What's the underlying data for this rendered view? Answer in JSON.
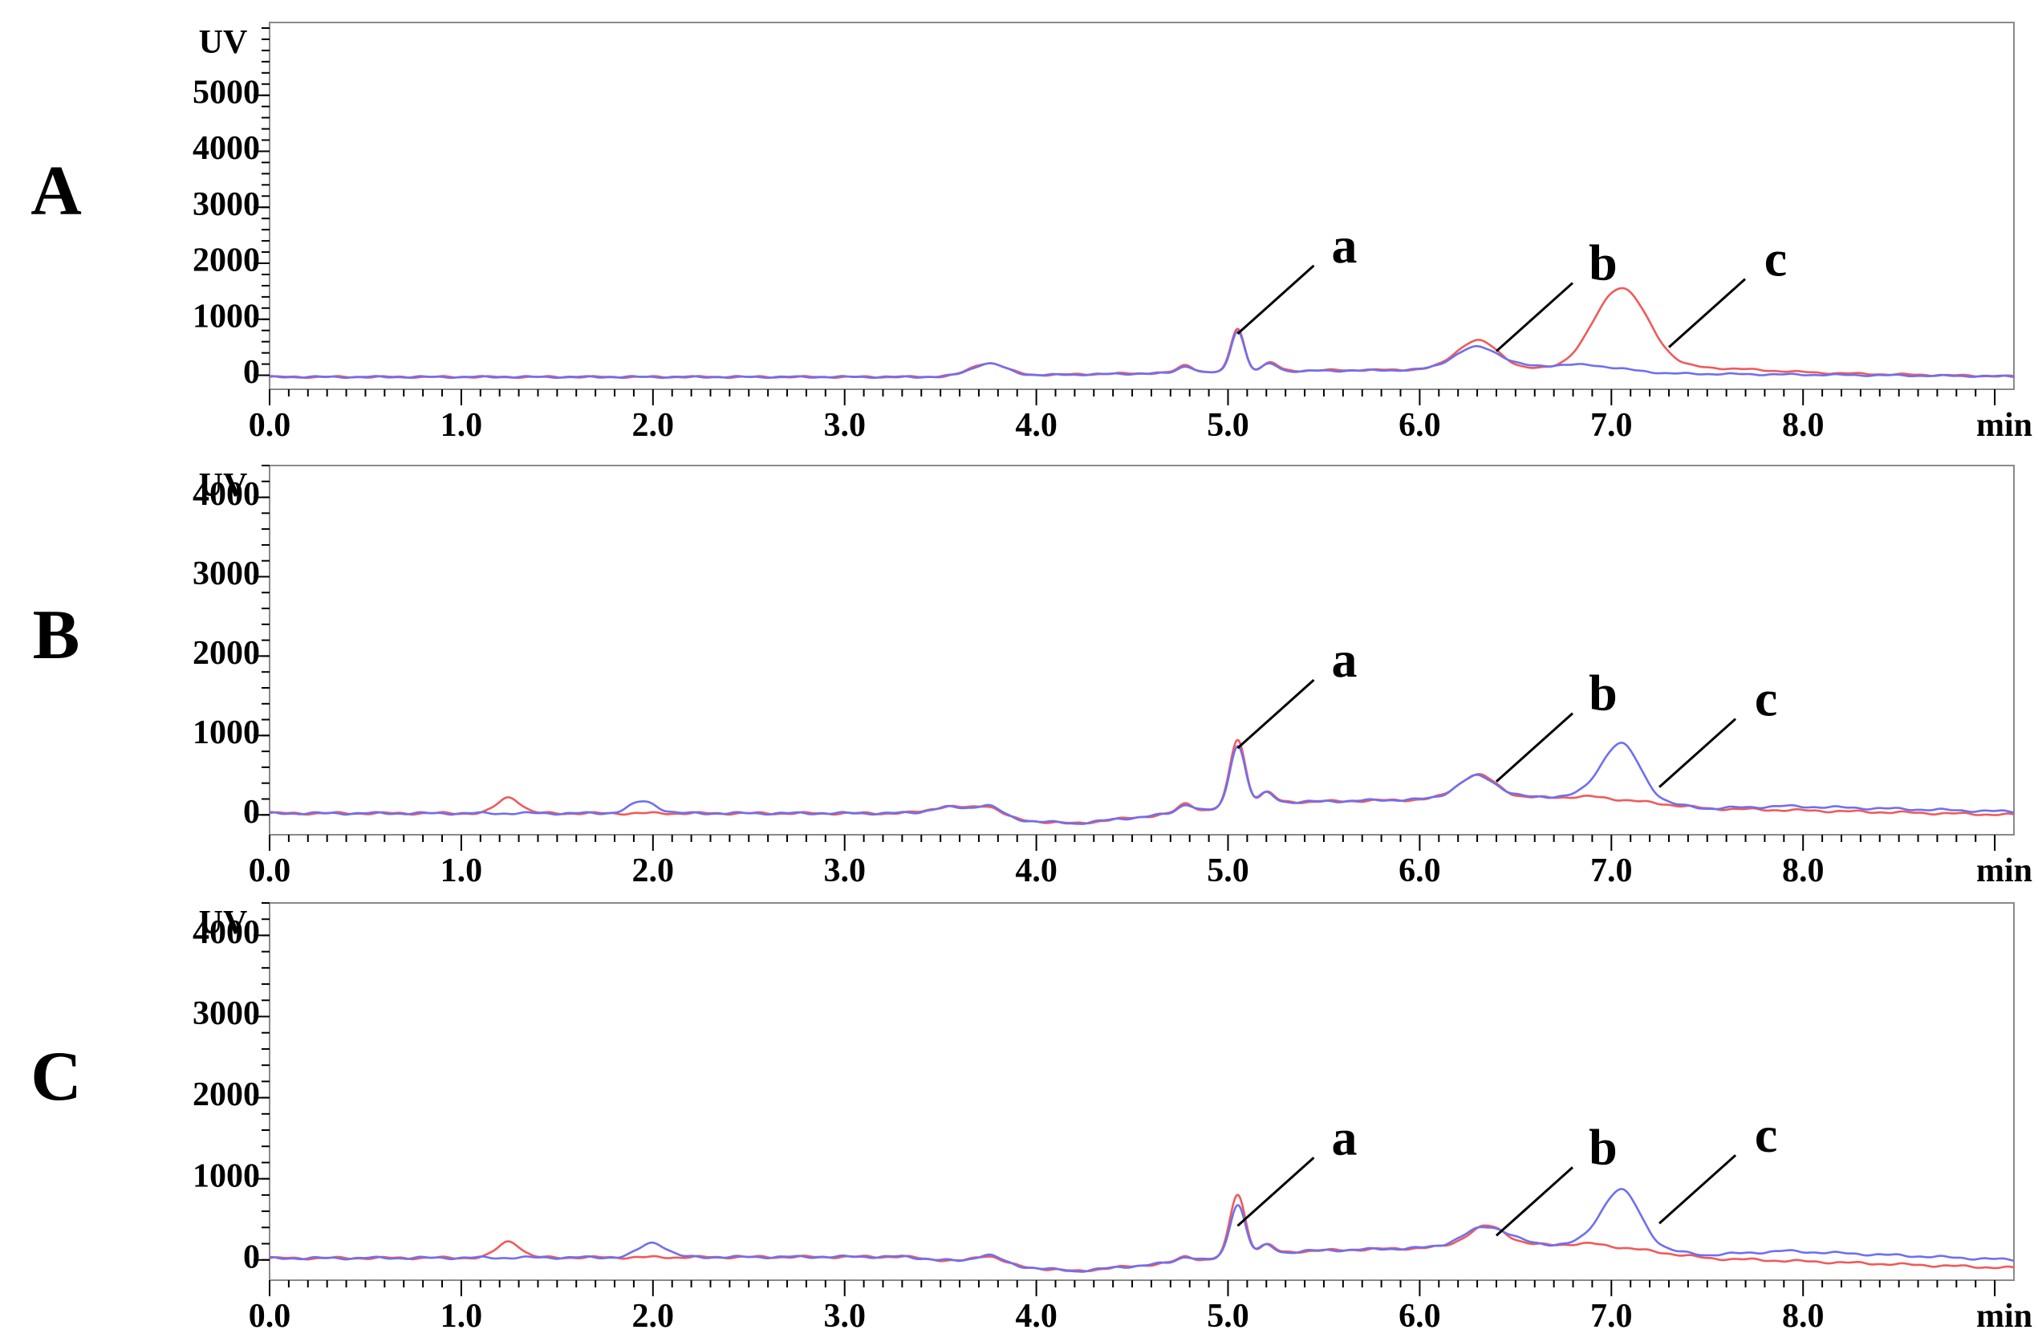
{
  "chart_data": [
    {
      "type": "line",
      "panel_label": "A",
      "ylabel": "UV",
      "xlabel": "min",
      "xlim": [
        0,
        9.1
      ],
      "ylim": [
        -250,
        6300
      ],
      "y_ticks": [
        0,
        1000,
        2000,
        3000,
        4000,
        5000
      ],
      "x_ticks": [
        "0.0",
        "1.0",
        "2.0",
        "3.0",
        "4.0",
        "5.0",
        "6.0",
        "7.0",
        "8.0"
      ],
      "peak_labels": [
        {
          "label": "a",
          "x": 5.05,
          "y": 740
        },
        {
          "label": "b",
          "x": 6.4,
          "y": 430
        },
        {
          "label": "c",
          "x": 7.3,
          "y": 500
        }
      ],
      "series": [
        {
          "color": "#f05a5a",
          "peaks": [
            [
              3.75,
              230,
              0.09
            ],
            [
              4.78,
              130,
              0.04
            ],
            [
              5.05,
              770,
              0.035
            ],
            [
              5.22,
              150,
              0.04
            ],
            [
              6.3,
              520,
              0.11
            ],
            [
              7.05,
              1450,
              0.14
            ],
            [
              7.5,
              60,
              0.3
            ]
          ],
          "baseline": [
            [
              0,
              -30
            ],
            [
              3.4,
              -30
            ],
            [
              5.5,
              90
            ],
            [
              6.8,
              110
            ],
            [
              9.1,
              -20
            ]
          ]
        },
        {
          "color": "#6f6ff0",
          "peaks": [
            [
              3.75,
              220,
              0.09
            ],
            [
              4.78,
              120,
              0.04
            ],
            [
              5.05,
              740,
              0.035
            ],
            [
              5.22,
              140,
              0.04
            ],
            [
              6.3,
              400,
              0.12
            ],
            [
              6.8,
              70,
              0.2
            ]
          ],
          "baseline": [
            [
              0,
              -30
            ],
            [
              3.4,
              -30
            ],
            [
              5.5,
              80
            ],
            [
              6.9,
              120
            ],
            [
              7.3,
              30
            ],
            [
              9.1,
              -20
            ]
          ]
        }
      ]
    },
    {
      "type": "line",
      "panel_label": "B",
      "ylabel": "UV",
      "xlabel": "min",
      "xlim": [
        0,
        9.1
      ],
      "ylim": [
        -250,
        4400
      ],
      "y_ticks": [
        0,
        1000,
        2000,
        3000,
        4000
      ],
      "x_ticks": [
        "0.0",
        "1.0",
        "2.0",
        "3.0",
        "4.0",
        "5.0",
        "6.0",
        "7.0",
        "8.0"
      ],
      "peak_labels": [
        {
          "label": "a",
          "x": 5.05,
          "y": 840
        },
        {
          "label": "b",
          "x": 6.4,
          "y": 420
        },
        {
          "label": "c",
          "x": 7.25,
          "y": 350
        }
      ],
      "series": [
        {
          "color": "#f05a5a",
          "peaks": [
            [
              1.25,
              200,
              0.06
            ],
            [
              3.55,
              120,
              0.1
            ],
            [
              3.75,
              140,
              0.07
            ],
            [
              4.78,
              110,
              0.04
            ],
            [
              5.05,
              850,
              0.04
            ],
            [
              5.2,
              150,
              0.04
            ],
            [
              6.3,
              300,
              0.1
            ]
          ],
          "baseline": [
            [
              0,
              20
            ],
            [
              3.3,
              20
            ],
            [
              4.2,
              -110
            ],
            [
              5.3,
              160
            ],
            [
              6.9,
              230
            ],
            [
              7.5,
              80
            ],
            [
              9.1,
              0
            ]
          ]
        },
        {
          "color": "#6f6ff0",
          "peaks": [
            [
              1.95,
              150,
              0.07
            ],
            [
              3.55,
              110,
              0.1
            ],
            [
              3.75,
              150,
              0.07
            ],
            [
              4.78,
              100,
              0.04
            ],
            [
              5.05,
              780,
              0.04
            ],
            [
              5.2,
              140,
              0.04
            ],
            [
              6.3,
              280,
              0.1
            ],
            [
              7.05,
              700,
              0.1
            ]
          ],
          "baseline": [
            [
              0,
              20
            ],
            [
              3.3,
              20
            ],
            [
              4.2,
              -110
            ],
            [
              5.3,
              160
            ],
            [
              6.9,
              240
            ],
            [
              7.5,
              80
            ],
            [
              7.9,
              110
            ],
            [
              9.1,
              40
            ]
          ]
        }
      ]
    },
    {
      "type": "line",
      "panel_label": "C",
      "ylabel": "UV",
      "xlabel": "min",
      "xlim": [
        0,
        9.1
      ],
      "ylim": [
        -250,
        4400
      ],
      "y_ticks": [
        0,
        1000,
        2000,
        3000,
        4000
      ],
      "x_ticks": [
        "0.0",
        "1.0",
        "2.0",
        "3.0",
        "4.0",
        "5.0",
        "6.0",
        "7.0",
        "8.0"
      ],
      "peak_labels": [
        {
          "label": "a",
          "x": 5.05,
          "y": 420
        },
        {
          "label": "b",
          "x": 6.4,
          "y": 300
        },
        {
          "label": "c",
          "x": 7.25,
          "y": 450
        }
      ],
      "series": [
        {
          "color": "#f05a5a",
          "peaks": [
            [
              1.25,
              200,
              0.06
            ],
            [
              3.75,
              100,
              0.07
            ],
            [
              4.78,
              60,
              0.04
            ],
            [
              5.05,
              770,
              0.04
            ],
            [
              5.2,
              120,
              0.04
            ],
            [
              6.35,
              250,
              0.1
            ]
          ],
          "baseline": [
            [
              0,
              20
            ],
            [
              3.3,
              40
            ],
            [
              4.2,
              -140
            ],
            [
              5.4,
              110
            ],
            [
              6.9,
              200
            ],
            [
              7.5,
              20
            ],
            [
              9.1,
              -100
            ]
          ]
        },
        {
          "color": "#6f6ff0",
          "peaks": [
            [
              2.0,
              180,
              0.07
            ],
            [
              3.75,
              110,
              0.07
            ],
            [
              4.78,
              60,
              0.04
            ],
            [
              5.05,
              650,
              0.04
            ],
            [
              5.2,
              110,
              0.04
            ],
            [
              6.35,
              240,
              0.12
            ],
            [
              7.05,
              700,
              0.1
            ]
          ],
          "baseline": [
            [
              0,
              20
            ],
            [
              3.3,
              40
            ],
            [
              4.2,
              -140
            ],
            [
              5.4,
              110
            ],
            [
              6.9,
              200
            ],
            [
              7.5,
              60
            ],
            [
              7.9,
              110
            ],
            [
              9.1,
              0
            ]
          ]
        }
      ]
    }
  ]
}
